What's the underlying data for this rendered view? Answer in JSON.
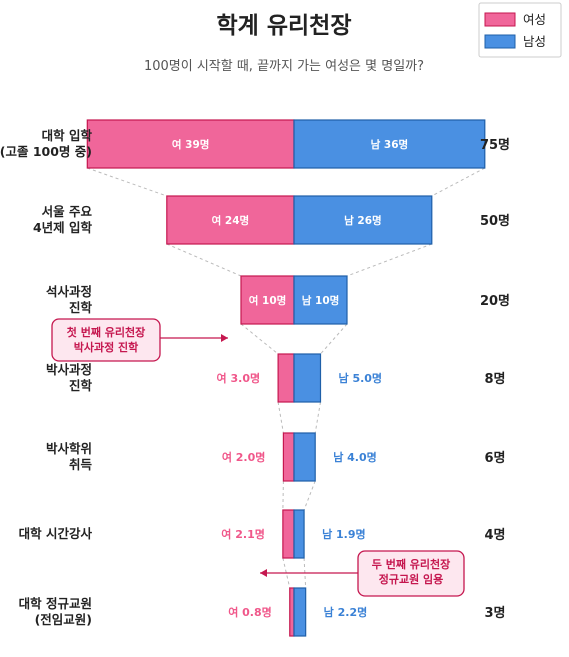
{
  "title": "학계 유리천장",
  "subtitle": "100명이 시작할 때, 끝까지 가는 여성은 몇 명일까?",
  "legend": [
    {
      "label": "여성",
      "color": "#f0669a"
    },
    {
      "label": "남성",
      "color": "#4a90e2"
    }
  ],
  "colors": {
    "female": "#f0669a",
    "male": "#4a90e2",
    "female_border": "#c5174f",
    "male_border": "#1f5fa8",
    "callout_fill": "#fde7ef",
    "callout_border": "#c5174f"
  },
  "chart_data": {
    "type": "bar",
    "orientation": "horizontal-stacked-funnel",
    "categories": [
      [
        "대학 입학",
        "(고졸 100명 중)"
      ],
      [
        "서울 주요",
        "4년제 입학"
      ],
      [
        "석사과정",
        "진학"
      ],
      [
        "박사과정",
        "진학"
      ],
      [
        "박사학위",
        "취득"
      ],
      [
        "대학 시간강사"
      ],
      [
        "대학 정규교원",
        "(전임교원)"
      ]
    ],
    "series": [
      {
        "name": "여성",
        "values": [
          39,
          24,
          10,
          3.0,
          2.0,
          2.1,
          0.8
        ],
        "labels": [
          "여 39명",
          "여 24명",
          "여 10명",
          "여 3.0명",
          "여 2.0명",
          "여 2.1명",
          "여 0.8명"
        ]
      },
      {
        "name": "남성",
        "values": [
          36,
          26,
          10,
          5.0,
          4.0,
          1.9,
          2.2
        ],
        "labels": [
          "남 36명",
          "남 26명",
          "남 10명",
          "남 5.0명",
          "남 4.0명",
          "남 1.9명",
          "남 2.2명"
        ]
      }
    ],
    "totals": [
      "75명",
      "50명",
      "20명",
      "8명",
      "6명",
      "4명",
      "3명"
    ],
    "annotations": [
      {
        "lines": [
          "첫 번째 유리천장",
          "박사과정 진학"
        ],
        "after_stage": 2,
        "side": "left"
      },
      {
        "lines": [
          "두 번째 유리천장",
          "정규교원 임용"
        ],
        "after_stage": 5,
        "side": "right"
      }
    ]
  }
}
